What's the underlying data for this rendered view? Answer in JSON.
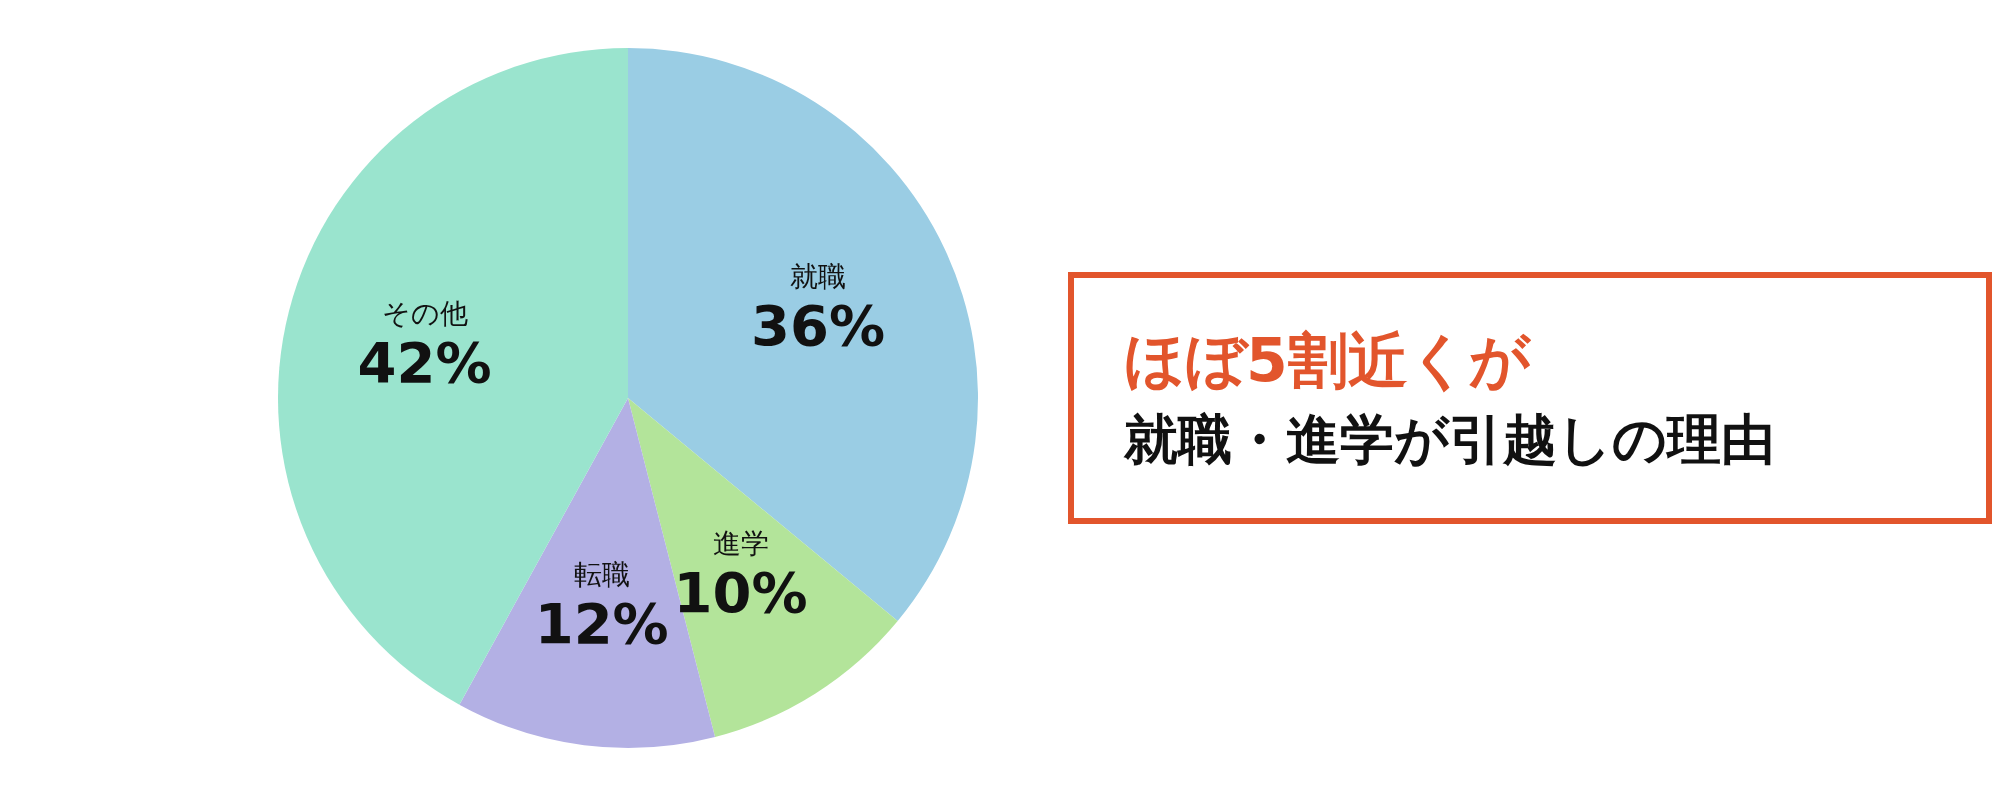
{
  "chart_data": {
    "type": "pie",
    "categories": [
      "就職",
      "進学",
      "転職",
      "その他"
    ],
    "values": [
      36,
      10,
      12,
      42
    ],
    "value_labels": [
      "36%",
      "10%",
      "12%",
      "42%"
    ],
    "colors": [
      "#9acde4",
      "#b3e49a",
      "#b3b0e4",
      "#9ae4ce"
    ],
    "legend": false,
    "annotations": [
      "ほぼ5割近くが",
      "就職・進学が引越しの理由"
    ]
  }
}
